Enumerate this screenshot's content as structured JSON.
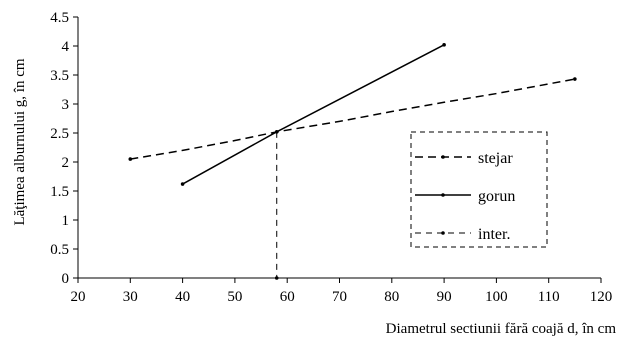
{
  "chart_data": {
    "type": "line",
    "title": "",
    "xlabel": "Diametrul sectiunii fără coajă d, în cm",
    "ylabel": "Lăţimea alburnului g, în cm",
    "xlim": [
      20,
      120
    ],
    "ylim": [
      0,
      4.5
    ],
    "x_ticks": [
      "20",
      "30",
      "40",
      "50",
      "60",
      "70",
      "80",
      "90",
      "100",
      "110",
      "120"
    ],
    "y_ticks": [
      "0",
      "0.5",
      "1",
      "1.5",
      "2",
      "2.5",
      "3",
      "3.5",
      "4",
      "4.5"
    ],
    "grid": false,
    "legend_position": "right",
    "series": [
      {
        "name": "stejar",
        "style": "dashed",
        "color": "#000000",
        "points": [
          [
            30,
            2.05
          ],
          [
            40,
            2.2
          ],
          [
            50,
            2.37
          ],
          [
            58,
            2.52
          ],
          [
            70,
            2.7
          ],
          [
            80,
            2.87
          ],
          [
            90,
            3.03
          ],
          [
            100,
            3.18
          ],
          [
            115,
            3.43
          ]
        ]
      },
      {
        "name": "gorun",
        "style": "solid",
        "color": "#000000",
        "points": [
          [
            40,
            1.62
          ],
          [
            58,
            2.52
          ],
          [
            90,
            4.02
          ]
        ]
      },
      {
        "name": "inter.",
        "style": "dashed-fine",
        "color": "#000000",
        "points": [
          [
            58,
            2.52
          ],
          [
            58,
            0
          ]
        ]
      }
    ]
  }
}
